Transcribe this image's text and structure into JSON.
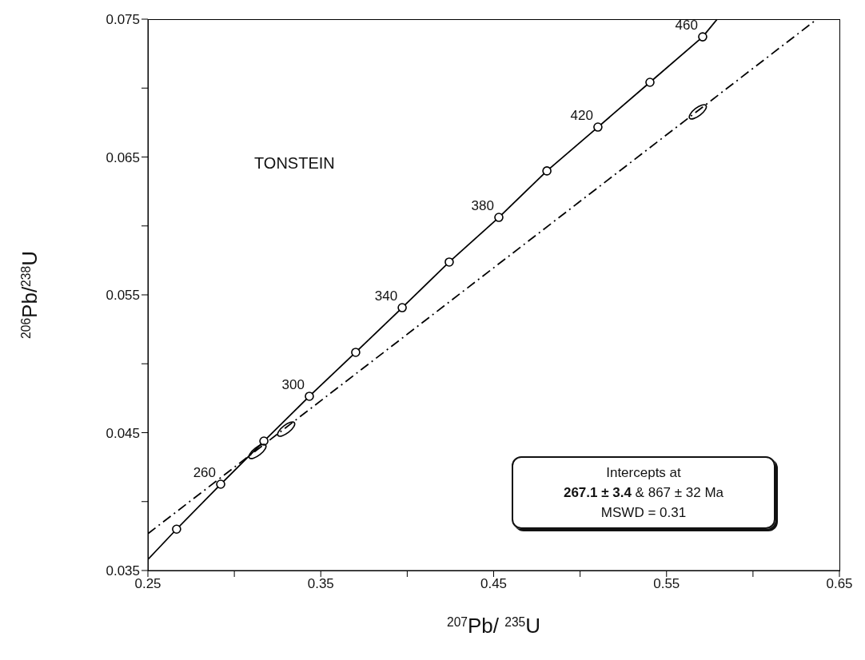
{
  "chart_data": {
    "type": "line",
    "xlabel": "$^{207}$Pb/ $^{235}$U",
    "ylabel": "$^{206}$Pb/$^{238}$U",
    "xlim": [
      0.25,
      0.65
    ],
    "xticks": [
      0.25,
      {
        "value": 0.3,
        "label": null
      },
      0.35,
      {
        "value": 0.4,
        "label": null
      },
      0.45,
      {
        "value": 0.5,
        "label": null
      },
      0.55,
      {
        "value": 0.6,
        "label": null
      },
      0.65
    ],
    "ylim": [
      0.035,
      0.075
    ],
    "yticks": [
      0.035,
      {
        "value": 0.04,
        "label": null
      },
      0.045,
      {
        "value": 0.05,
        "label": null
      },
      0.055,
      {
        "value": 0.06,
        "label": null
      },
      0.065,
      {
        "value": 0.07,
        "label": null
      },
      0.075
    ],
    "grid": false,
    "legend": false,
    "series": [
      {
        "type": "line",
        "color": "#000000",
        "marker": "none",
        "line_style": "solid",
        "x": [
          0.25,
          0.2666,
          0.2921,
          0.3171,
          0.3434,
          0.3702,
          0.3971,
          0.4243,
          0.453,
          0.4808,
          0.5103,
          0.5404,
          0.5709,
          0.5793
        ],
        "values": [
          0.0358,
          0.038,
          0.04126,
          0.04439,
          0.04764,
          0.05083,
          0.05407,
          0.05738,
          0.06062,
          0.06399,
          0.06717,
          0.07042,
          0.07372,
          0.075
        ]
      },
      {
        "type": "scatter",
        "color": "#000000",
        "marker": "circle",
        "x": [
          0.2666,
          0.2921,
          0.3171,
          0.3434,
          0.3702,
          0.3971,
          0.4243,
          0.453,
          0.4808,
          0.5103,
          0.5404,
          0.5709
        ],
        "values": [
          0.038,
          0.04126,
          0.04439,
          0.04764,
          0.05083,
          0.05407,
          0.05738,
          0.06062,
          0.06399,
          0.06717,
          0.07042,
          0.07372
        ]
      },
      {
        "type": "line",
        "color": "#000000",
        "marker": "none",
        "line_style": "dashed",
        "x": [
          0.25,
          0.637
        ],
        "values": [
          0.03767,
          0.075
        ]
      },
      {
        "type": "scatter",
        "color": "#000000",
        "x": [
          0.3134,
          0.33,
          0.5681
        ],
        "values": [
          0.04364,
          0.04526,
          0.06828
        ]
      }
    ],
    "annotations": [
      "TONSTEIN",
      "Intercepts at",
      "267.1 ± 3.4",
      "& 867 ± 32 Ma",
      "MSWD = 0.31",
      {
        "text": "260",
        "x": 0.2921,
        "y": 0.04126
      },
      {
        "text": "300",
        "x": 0.3434,
        "y": 0.04764
      },
      {
        "text": "340",
        "x": 0.3971,
        "y": 0.05407
      },
      {
        "text": "380",
        "x": 0.453,
        "y": 0.06062
      },
      {
        "text": "420",
        "x": 0.5103,
        "y": 0.06717
      },
      {
        "text": "460",
        "x": 0.5709,
        "y": 0.07372
      }
    ]
  }
}
